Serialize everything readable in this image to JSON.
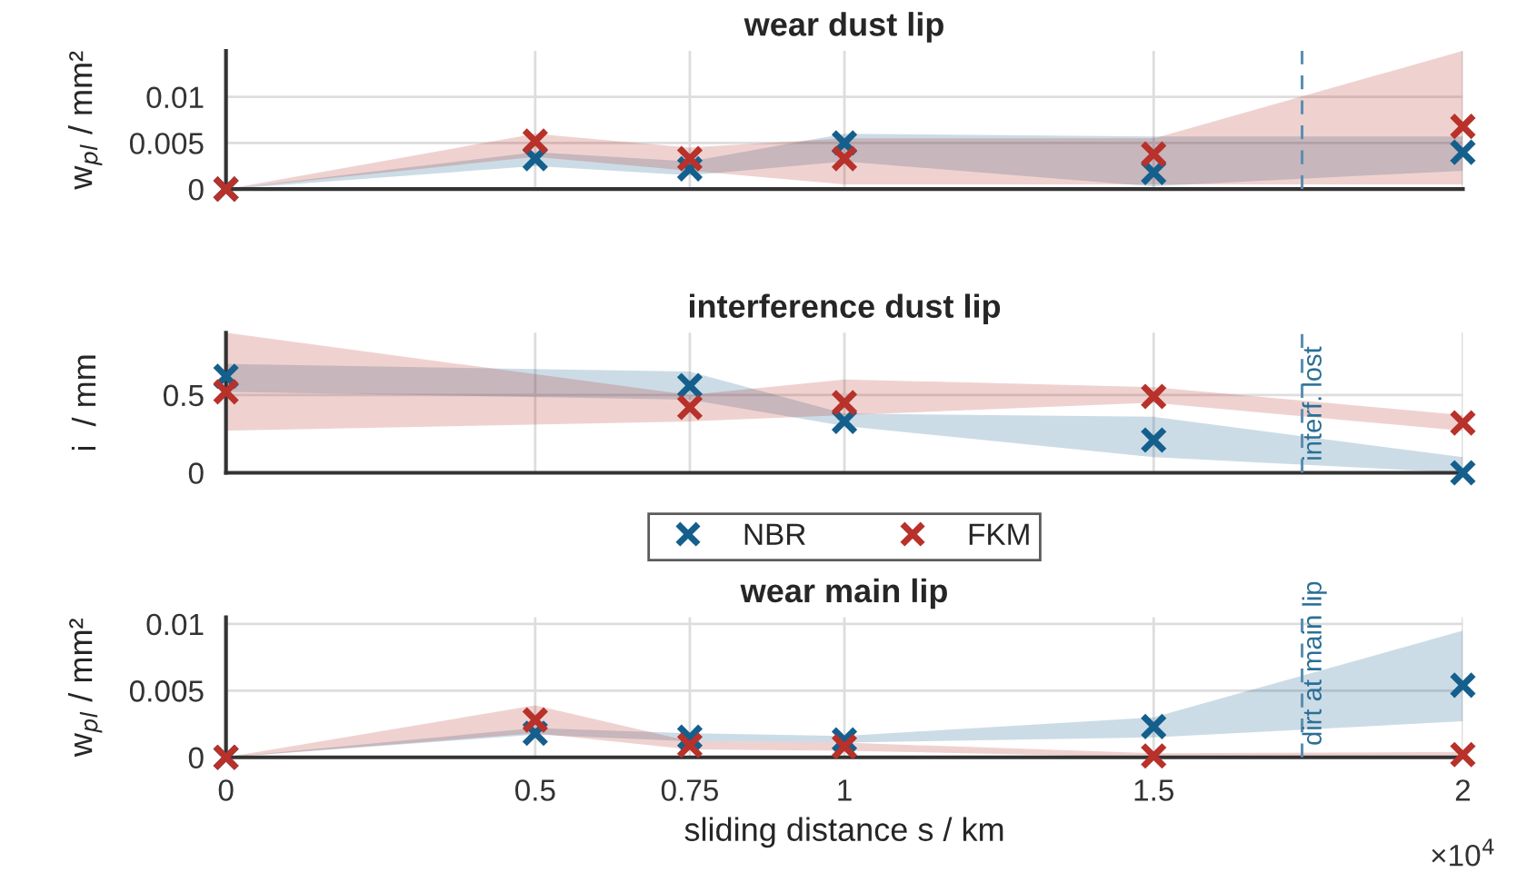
{
  "chart_data": [
    {
      "type": "scatter",
      "title": "wear dust lip",
      "ylabel": "w$_{pl}$ / mm²",
      "x": [
        0,
        0.5,
        0.75,
        1,
        1.5,
        2
      ],
      "series": [
        {
          "color": "#155f8c",
          "values": [
            0,
            0.0033,
            0.0022,
            0.005,
            0.0018,
            0.004
          ],
          "lower": [
            0,
            0.0025,
            0.0015,
            0.003,
            0.0003,
            0.002
          ],
          "upper": [
            0,
            0.004,
            0.003,
            0.006,
            0.0057,
            0.0057
          ]
        },
        {
          "color": "#b8312a",
          "values": [
            0,
            0.0052,
            0.0033,
            0.0033,
            0.0038,
            0.0068
          ],
          "lower": [
            0,
            0.0035,
            0.002,
            0.0005,
            0.0005,
            0.0005
          ],
          "upper": [
            0,
            0.006,
            0.0045,
            0.0055,
            0.0055,
            0.015
          ]
        }
      ],
      "xlim": [
        0,
        2
      ],
      "xticks": [
        0,
        0.5,
        0.75,
        1,
        1.5,
        2
      ],
      "ylim": [
        0,
        0.015
      ],
      "yticks": [
        0,
        0.005,
        0.01
      ],
      "tick_labels": "y",
      "grid": true,
      "marker": "cross",
      "ref_lines": [
        {
          "axis": "x",
          "value": 1.74,
          "color": "#5b8fb0",
          "line_style": "dashed"
        }
      ]
    },
    {
      "type": "scatter",
      "title": "interference dust lip",
      "ylabel": "i  / mm",
      "x": [
        0,
        0.75,
        1,
        1.5,
        2
      ],
      "series": [
        {
          "color": "#155f8c",
          "values": [
            0.62,
            0.56,
            0.33,
            0.21,
            0
          ],
          "lower": [
            0.52,
            0.47,
            0.3,
            0.1,
            0
          ],
          "upper": [
            0.7,
            0.65,
            0.38,
            0.36,
            0.1
          ]
        },
        {
          "color": "#b8312a",
          "values": [
            0.52,
            0.42,
            0.45,
            0.49,
            0.32
          ],
          "lower": [
            0.27,
            0.33,
            0.37,
            0.45,
            0.27
          ],
          "upper": [
            0.9,
            0.5,
            0.6,
            0.55,
            0.37
          ]
        }
      ],
      "xlim": [
        0,
        2
      ],
      "xticks": [
        0,
        0.5,
        0.75,
        1,
        1.5,
        2
      ],
      "ylim": [
        0,
        0.9
      ],
      "yticks": [
        0,
        0.5
      ],
      "tick_labels": "y",
      "grid": true,
      "marker": "cross",
      "ref_lines": [
        {
          "axis": "x",
          "value": 1.74,
          "label": "interf. lost",
          "color": "#5b8fb0",
          "line_style": "dashed"
        }
      ]
    },
    {
      "type": "scatter",
      "title": "wear main lip",
      "ylabel": "w$_{pl}$ / mm²",
      "xlabel": "sliding distance s / km",
      "x": [
        0,
        0.5,
        0.75,
        1,
        1.5,
        2
      ],
      "series": [
        {
          "name": "NBR",
          "color": "#155f8c",
          "values": [
            0,
            0.0018,
            0.0015,
            0.0013,
            0.0023,
            0.0054
          ],
          "lower": [
            0,
            0.0017,
            0.0012,
            0.0011,
            0.0015,
            0.0027
          ],
          "upper": [
            0,
            0.0022,
            0.0018,
            0.0016,
            0.003,
            0.0095
          ]
        },
        {
          "name": "FKM",
          "color": "#b8312a",
          "values": [
            0,
            0.0028,
            0.0009,
            0.0008,
            0.0001,
            0.0002
          ],
          "lower": [
            0,
            0.0018,
            0.0006,
            0.0005,
            0,
            0
          ],
          "upper": [
            0,
            0.0039,
            0.0012,
            0.0011,
            0.0003,
            0.0004
          ]
        }
      ],
      "xlim": [
        0,
        2
      ],
      "xticks": [
        0,
        0.5,
        0.75,
        1,
        1.5,
        2
      ],
      "ylim": [
        0,
        0.0105
      ],
      "yticks": [
        0,
        0.005,
        0.01
      ],
      "grid": true,
      "marker": "cross",
      "legend": "top",
      "annotations": [
        "×10$^{4}$"
      ],
      "ref_lines": [
        {
          "axis": "x",
          "value": 1.74,
          "label": "dirt at main lip",
          "color": "#5b8fb0",
          "line_style": "dashed"
        }
      ]
    }
  ]
}
